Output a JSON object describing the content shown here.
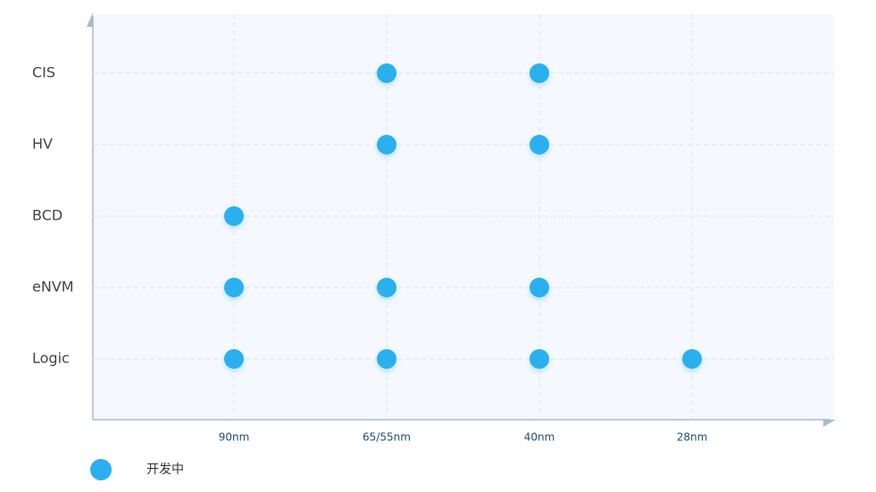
{
  "chart_data": {
    "type": "scatter",
    "x_categories": [
      "90nm",
      "65/55nm",
      "40nm",
      "28nm"
    ],
    "y_categories": [
      "CIS",
      "HV",
      "BCD",
      "eNVM",
      "Logic"
    ],
    "grid": true,
    "series": [
      {
        "name": "开发中",
        "color": "#2bb0ef",
        "points": [
          {
            "x": "65/55nm",
            "y": "CIS"
          },
          {
            "x": "40nm",
            "y": "CIS"
          },
          {
            "x": "65/55nm",
            "y": "HV"
          },
          {
            "x": "40nm",
            "y": "HV"
          },
          {
            "x": "90nm",
            "y": "BCD"
          },
          {
            "x": "90nm",
            "y": "eNVM"
          },
          {
            "x": "65/55nm",
            "y": "eNVM"
          },
          {
            "x": "40nm",
            "y": "eNVM"
          },
          {
            "x": "90nm",
            "y": "Logic"
          },
          {
            "x": "65/55nm",
            "y": "Logic"
          },
          {
            "x": "40nm",
            "y": "Logic"
          },
          {
            "x": "28nm",
            "y": "Logic"
          }
        ]
      }
    ]
  }
}
